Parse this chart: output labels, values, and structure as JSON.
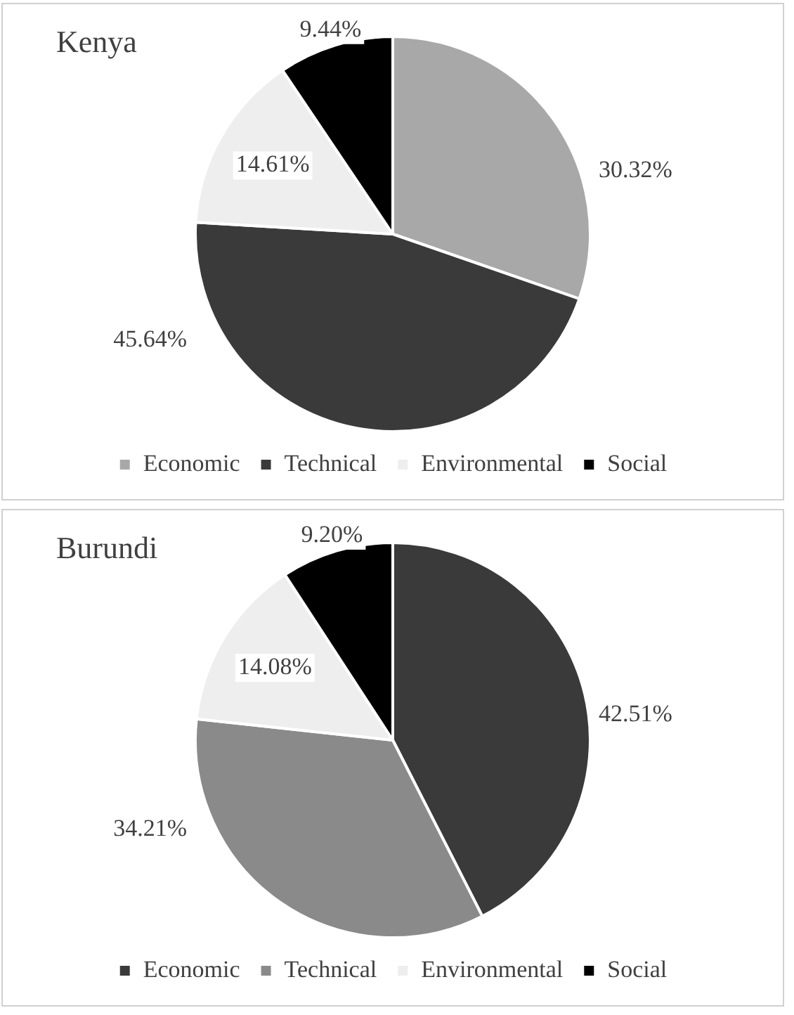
{
  "chart_data": [
    {
      "type": "pie",
      "title": "Kenya",
      "categories": [
        "Economic",
        "Technical",
        "Environmental",
        "Social"
      ],
      "values": [
        30.32,
        45.64,
        14.61,
        9.44
      ],
      "colors": [
        "#a8a8a8",
        "#3a3a3a",
        "#eeeeee",
        "#000000"
      ],
      "value_labels": [
        "30.32%",
        "45.64%",
        "14.61%",
        "9.44%"
      ],
      "legend": "bottom"
    },
    {
      "type": "pie",
      "title": "Burundi",
      "categories": [
        "Economic",
        "Technical",
        "Environmental",
        "Social"
      ],
      "values": [
        42.51,
        34.21,
        14.08,
        9.2
      ],
      "colors": [
        "#3a3a3a",
        "#8a8a8a",
        "#eeeeee",
        "#000000"
      ],
      "value_labels": [
        "42.51%",
        "34.21%",
        "14.08%",
        "9.20%"
      ],
      "legend": "bottom"
    }
  ]
}
